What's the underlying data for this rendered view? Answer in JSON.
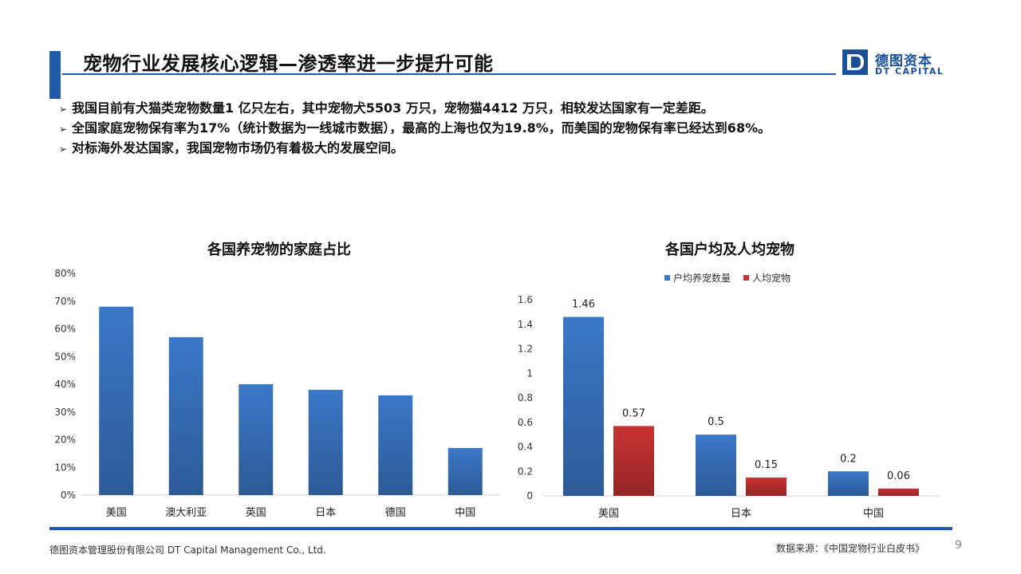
{
  "header": {
    "title": "宠物行业发展核心逻辑—渗透率进一步提升可能",
    "logo_cn": "德图资本",
    "logo_en": "DT CAPITAL"
  },
  "bullets": [
    "我国目前有犬猫类宠物数量1 亿只左右，其中宠物犬5503 万只，宠物猫4412 万只，相较发达国家有一定差距。",
    "全国家庭宠物保有率为17%（统计数据为一线城市数据），最高的上海也仅为19.8%，而美国的宠物保有率已经达到68%。",
    "对标海外发达国家，我国宠物市场仍有着极大的发展空间。"
  ],
  "chart_data": [
    {
      "type": "bar",
      "title": "各国养宠物的家庭占比",
      "categories": [
        "美国",
        "澳大利亚",
        "英国",
        "日本",
        "德国",
        "中国"
      ],
      "values": [
        68,
        57,
        40,
        38,
        36,
        17
      ],
      "yticks": [
        "0%",
        "10%",
        "20%",
        "30%",
        "40%",
        "50%",
        "60%",
        "70%",
        "80%"
      ],
      "ylim": [
        0,
        80
      ],
      "color": "#3a78c8",
      "grid": false
    },
    {
      "type": "bar",
      "title": "各国户均及人均宠物",
      "categories": [
        "美国",
        "日本",
        "中国"
      ],
      "series": [
        {
          "name": "户均养宠数量",
          "values": [
            1.46,
            0.5,
            0.2
          ],
          "labels": [
            "1.46",
            "0.5",
            "0.2"
          ],
          "color": "#3a78c8"
        },
        {
          "name": "人均宠物",
          "values": [
            0.57,
            0.15,
            0.06
          ],
          "labels": [
            "0.57",
            "0.15",
            "0.06"
          ],
          "color": "#c83232"
        }
      ],
      "yticks": [
        "0",
        "0.2",
        "0.4",
        "0.6",
        "0.8",
        "1",
        "1.2",
        "1.4",
        "1.6"
      ],
      "ylim": [
        0,
        1.6
      ],
      "legend": "top",
      "grid": false
    }
  ],
  "footer": {
    "company": "德图资本管理股份有限公司  DT Capital Management  Co., Ltd.",
    "source": "数据来源：《中国宠物行业白皮书》",
    "page": "9"
  }
}
